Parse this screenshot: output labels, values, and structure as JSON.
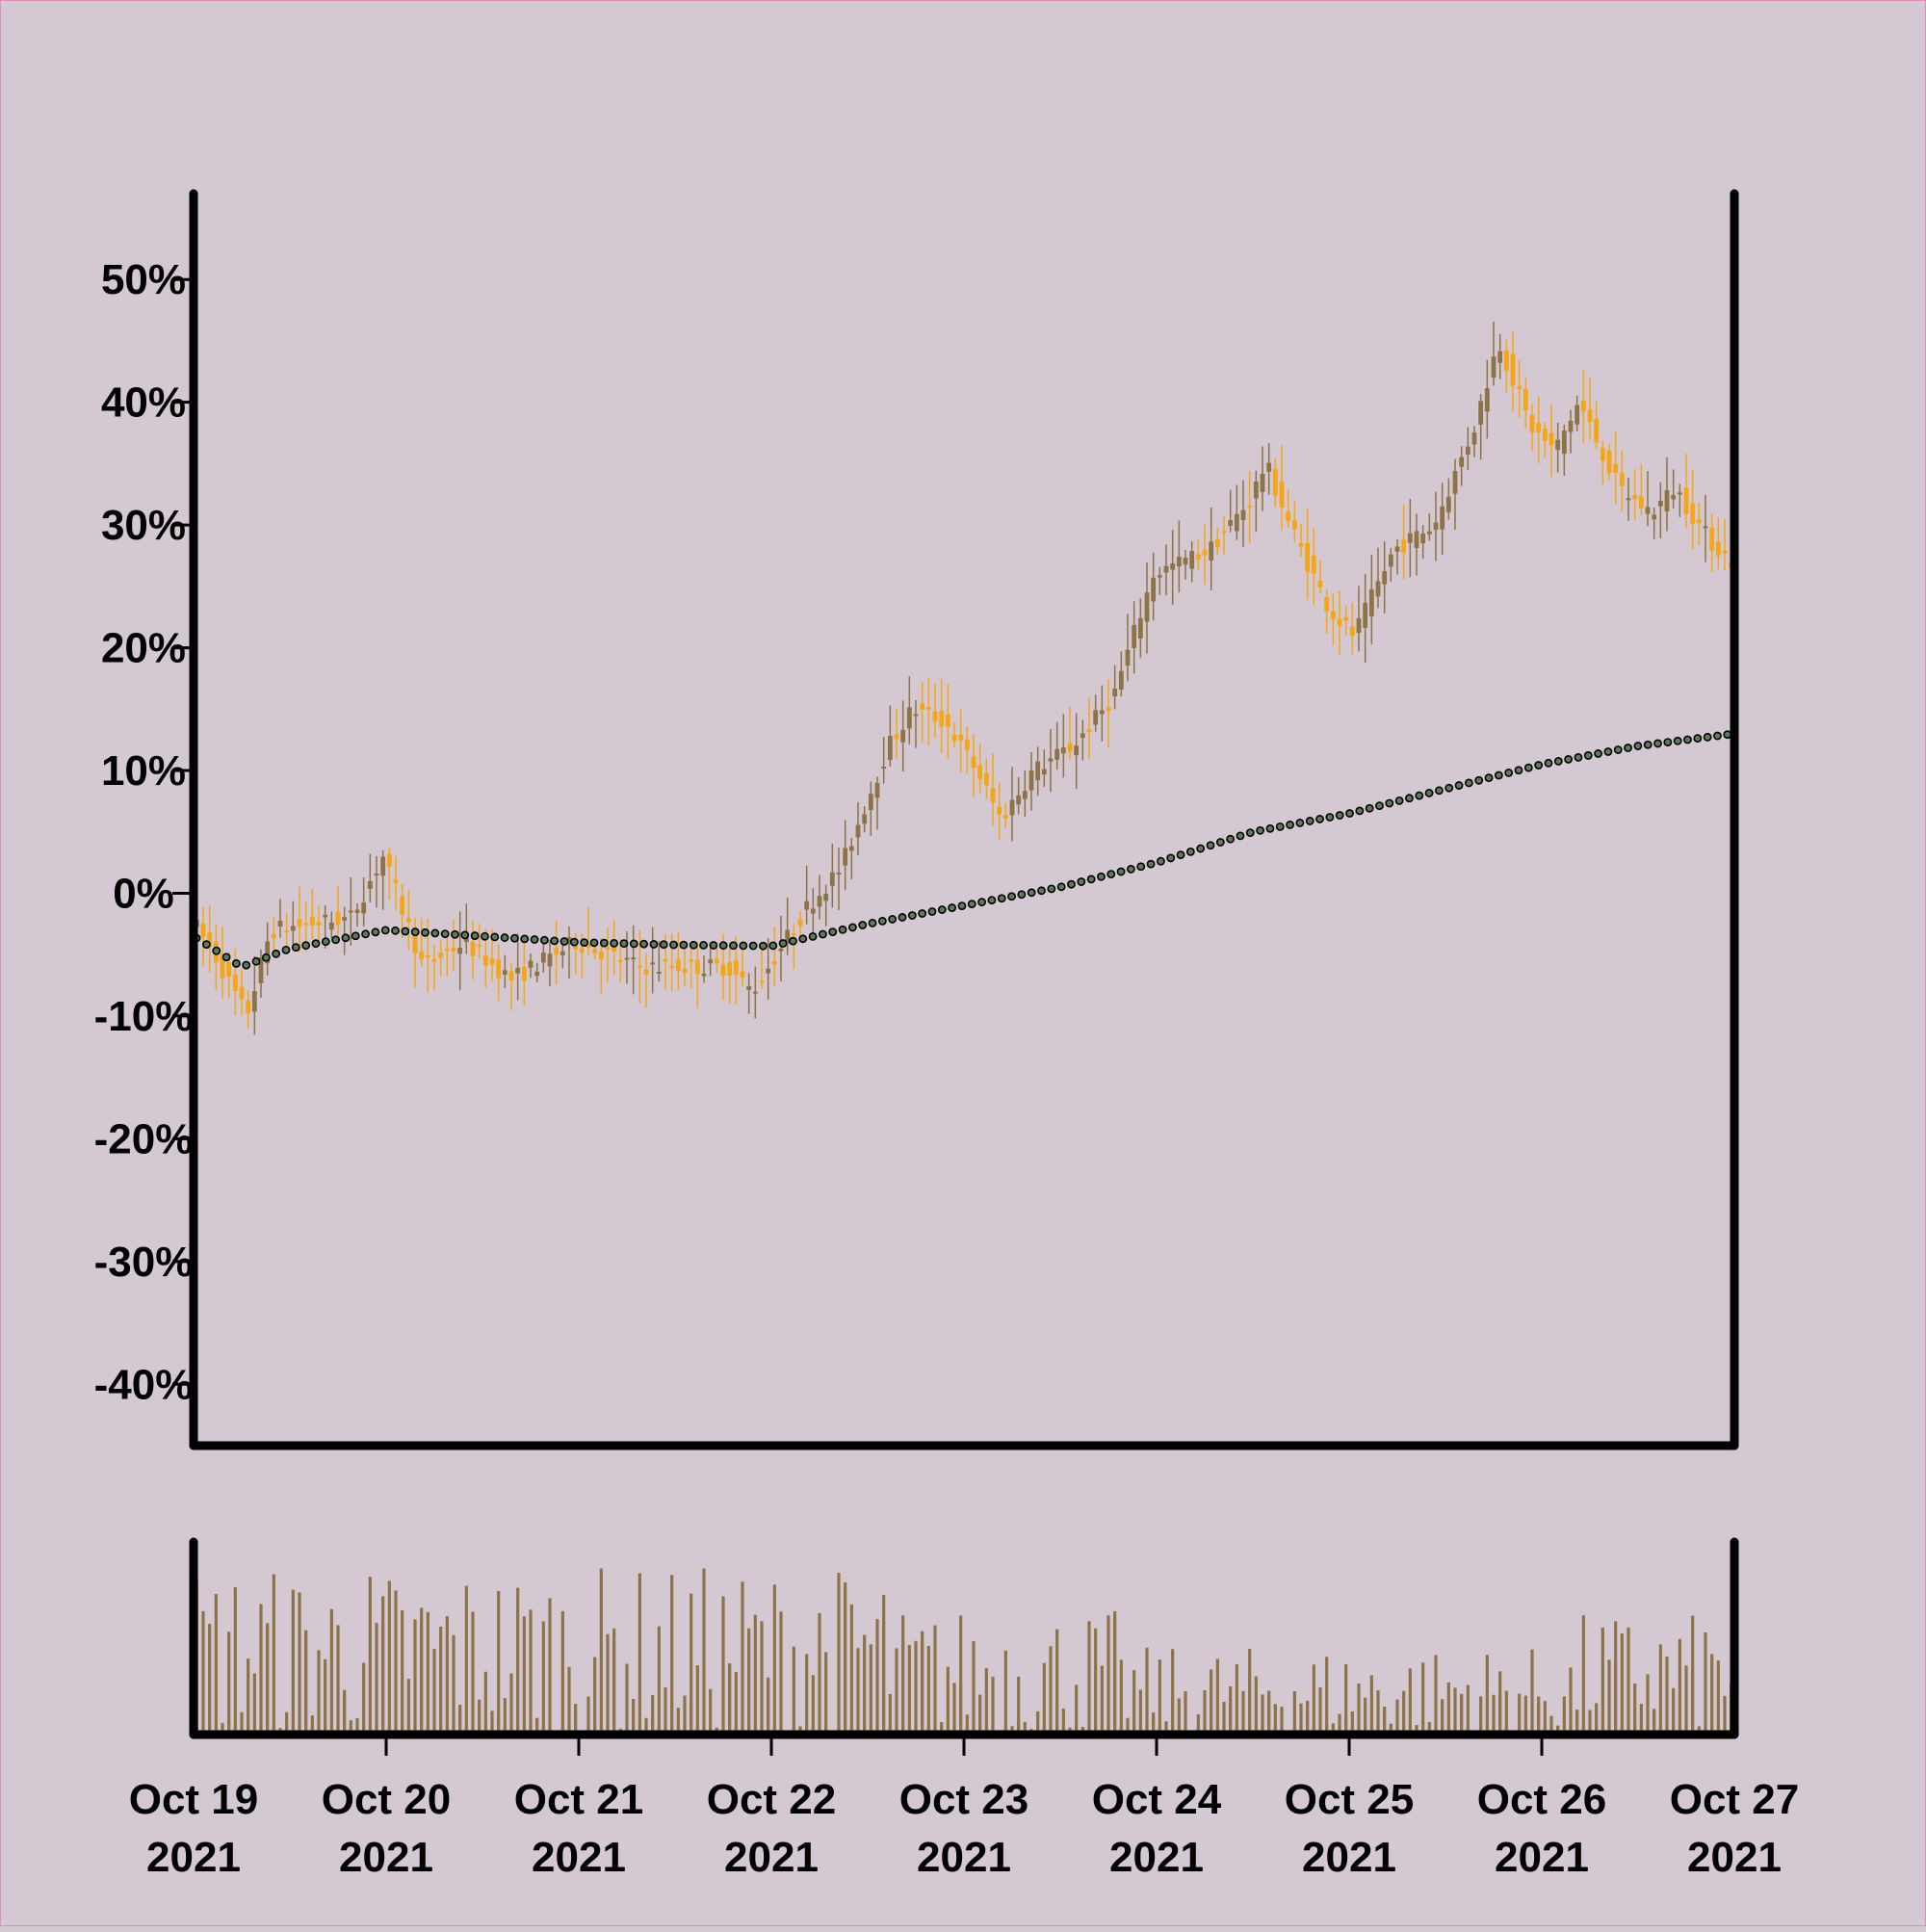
{
  "chart_data": {
    "type": "candlestick",
    "y_unit": "%",
    "ylim": [
      -45,
      57
    ],
    "y_ticks": [
      -40,
      -30,
      -20,
      -10,
      0,
      10,
      20,
      30,
      40,
      50
    ],
    "y_tick_labels": [
      "-40%",
      "-30%",
      "-20%",
      "-10%",
      "0%",
      "10%",
      "20%",
      "30%",
      "40%",
      "50%"
    ],
    "x_range": [
      "2021-10-19",
      "2021-10-27"
    ],
    "x_ticks": [
      "2021-10-19",
      "2021-10-20",
      "2021-10-21",
      "2021-10-22",
      "2021-10-23",
      "2021-10-24",
      "2021-10-25",
      "2021-10-26",
      "2021-10-27"
    ],
    "x_tick_labels": [
      [
        "Oct 19",
        "2021"
      ],
      [
        "Oct 20",
        "2021"
      ],
      [
        "Oct 21",
        "2021"
      ],
      [
        "Oct 22",
        "2021"
      ],
      [
        "Oct 23",
        "2021"
      ],
      [
        "Oct 24",
        "2021"
      ],
      [
        "Oct 25",
        "2021"
      ],
      [
        "Oct 26",
        "2021"
      ],
      [
        "Oct 27",
        "2021"
      ]
    ],
    "grid": false,
    "legend": "none",
    "colors": {
      "background": "#d4c8d3",
      "candle_up": "#8d7347",
      "candle_down": "#f5a516",
      "moving_average_marker": "#5f7a5e",
      "volume": "#8d7347",
      "axis": "#000000"
    },
    "price_path": [
      [
        "2021-10-19T00:00",
        -2
      ],
      [
        "2021-10-19T03:00",
        -5
      ],
      [
        "2021-10-19T07:00",
        -10
      ],
      [
        "2021-10-19T10:00",
        -3
      ],
      [
        "2021-10-19T20:00",
        -2
      ],
      [
        "2021-10-20T00:00",
        3
      ],
      [
        "2021-10-20T05:00",
        -6
      ],
      [
        "2021-10-20T10:00",
        -4
      ],
      [
        "2021-10-20T16:00",
        -7
      ],
      [
        "2021-10-21T00:00",
        -4
      ],
      [
        "2021-10-21T08:00",
        -6
      ],
      [
        "2021-10-21T19:00",
        -6
      ],
      [
        "2021-10-21T22:00",
        -8
      ],
      [
        "2021-10-22T05:00",
        -1
      ],
      [
        "2021-10-22T09:00",
        2
      ],
      [
        "2021-10-22T15:00",
        12
      ],
      [
        "2021-10-22T18:00",
        15
      ],
      [
        "2021-10-22T22:00",
        14
      ],
      [
        "2021-10-23T02:00",
        10
      ],
      [
        "2021-10-23T05:00",
        6
      ],
      [
        "2021-10-23T09:00",
        10
      ],
      [
        "2021-10-23T14:00",
        12
      ],
      [
        "2021-10-23T19:00",
        16
      ],
      [
        "2021-10-24T00:00",
        26
      ],
      [
        "2021-10-24T07:00",
        28
      ],
      [
        "2021-10-24T12:00",
        32
      ],
      [
        "2021-10-24T14:00",
        35
      ],
      [
        "2021-10-24T17:00",
        30
      ],
      [
        "2021-10-24T22:00",
        23
      ],
      [
        "2021-10-25T01:00",
        21
      ],
      [
        "2021-10-25T06:00",
        28
      ],
      [
        "2021-10-25T11:00",
        30
      ],
      [
        "2021-10-25T16:00",
        38
      ],
      [
        "2021-10-25T19:00",
        45
      ],
      [
        "2021-10-25T23:00",
        38
      ],
      [
        "2021-10-26T02:00",
        36
      ],
      [
        "2021-10-26T05:00",
        40
      ],
      [
        "2021-10-26T10:00",
        33
      ],
      [
        "2021-10-26T14:00",
        31
      ],
      [
        "2021-10-26T17:00",
        33
      ],
      [
        "2021-10-26T21:00",
        29
      ],
      [
        "2021-10-27T00:00",
        27
      ]
    ],
    "moving_average": [
      [
        "2021-10-19T00:00",
        -3.5
      ],
      [
        "2021-10-19T06:00",
        -6
      ],
      [
        "2021-10-19T12:00",
        -4.5
      ],
      [
        "2021-10-20T00:00",
        -3
      ],
      [
        "2021-10-20T12:00",
        -3.5
      ],
      [
        "2021-10-21T00:00",
        -4
      ],
      [
        "2021-10-21T12:00",
        -4.2
      ],
      [
        "2021-10-22T00:00",
        -4.3
      ],
      [
        "2021-10-22T12:00",
        -2.5
      ],
      [
        "2021-10-23T00:00",
        -1
      ],
      [
        "2021-10-23T12:00",
        0.5
      ],
      [
        "2021-10-24T00:00",
        2.5
      ],
      [
        "2021-10-24T12:00",
        5
      ],
      [
        "2021-10-25T00:00",
        6.5
      ],
      [
        "2021-10-25T12:00",
        8.5
      ],
      [
        "2021-10-26T00:00",
        10.5
      ],
      [
        "2021-10-26T12:00",
        12
      ],
      [
        "2021-10-27T00:00",
        13
      ]
    ]
  }
}
